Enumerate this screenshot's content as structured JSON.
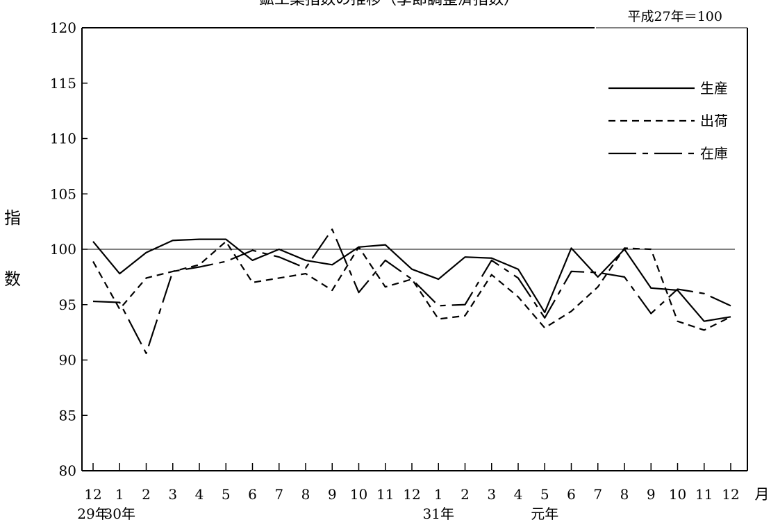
{
  "chart_data": {
    "type": "line",
    "title": "鉱工業指数の推移（季節調整済指数）",
    "base_note": "平成27年＝100",
    "ylabel": "指数",
    "xlabel_unit": "月",
    "ylim": [
      80,
      120
    ],
    "y_ticks": [
      80,
      85,
      90,
      95,
      100,
      105,
      110,
      115,
      120
    ],
    "reference_line": 100,
    "categories": [
      "12",
      "1",
      "2",
      "3",
      "4",
      "5",
      "6",
      "7",
      "8",
      "9",
      "10",
      "11",
      "12",
      "1",
      "2",
      "3",
      "4",
      "5",
      "6",
      "7",
      "8",
      "9",
      "10",
      "11",
      "12"
    ],
    "year_labels": [
      {
        "index": 0,
        "label": "29年"
      },
      {
        "index": 1,
        "label": "30年"
      },
      {
        "index": 13,
        "label": "31年"
      },
      {
        "index": 17,
        "label": "元年"
      }
    ],
    "legend_position": "top-right",
    "series": [
      {
        "name": "生産",
        "style": "solid",
        "values": [
          100.7,
          97.8,
          99.7,
          100.8,
          100.9,
          100.9,
          99.0,
          100.0,
          99.0,
          98.6,
          100.2,
          100.4,
          98.2,
          97.3,
          99.3,
          99.2,
          98.2,
          94.3,
          100.1,
          97.5,
          100.0,
          96.5,
          96.3,
          93.5,
          93.9
        ]
      },
      {
        "name": "出荷",
        "style": "dashed",
        "values": [
          98.9,
          94.6,
          97.4,
          98.0,
          98.6,
          100.7,
          97.0,
          97.4,
          97.8,
          96.3,
          100.2,
          96.6,
          97.3,
          93.7,
          94.0,
          97.7,
          95.7,
          92.9,
          94.4,
          96.6,
          100.1,
          100.0,
          93.5,
          92.7,
          93.9
        ]
      },
      {
        "name": "在庫",
        "style": "dashdot",
        "values": [
          95.3,
          95.2,
          90.6,
          98.0,
          98.4,
          98.9,
          99.9,
          99.3,
          98.3,
          101.8,
          96.1,
          99.0,
          97.3,
          94.9,
          95.0,
          99.0,
          97.4,
          93.8,
          98.0,
          97.9,
          97.5,
          94.2,
          96.4,
          96.0,
          94.9
        ]
      }
    ]
  }
}
